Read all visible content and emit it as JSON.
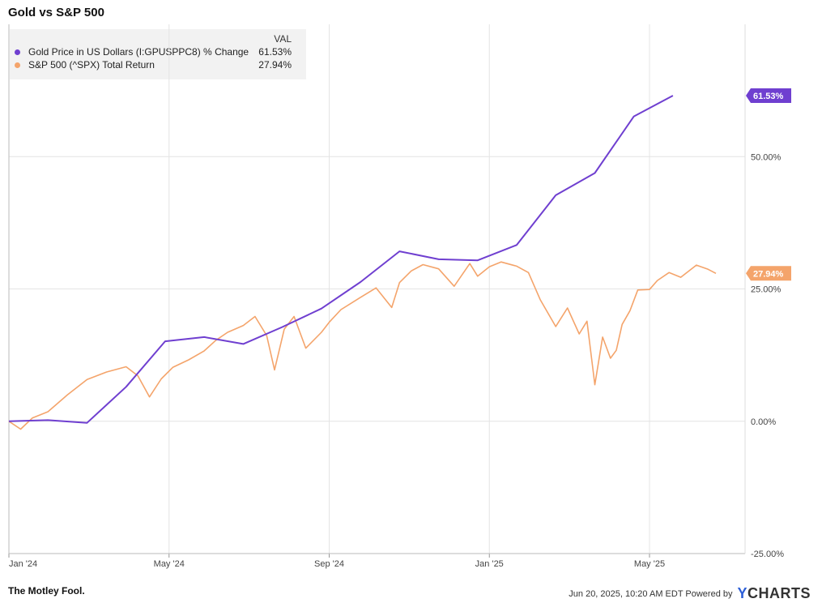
{
  "chart_data": {
    "type": "line",
    "title": "Gold vs S&P 500",
    "legend_header": "VAL",
    "x_ticks": [
      "Jan '24",
      "May '24",
      "Sep '24",
      "Jan '25",
      "May '25"
    ],
    "y_ticks": [
      "50.00%",
      "25.00%",
      "0.00%",
      "-25.00%"
    ],
    "ylim": [
      -25,
      75
    ],
    "series": [
      {
        "name": "Gold Price in US Dollars (I:GPUSPPC8) % Change",
        "color": "#6f3fd0",
        "last_label": "61.53%",
        "x": [
          0,
          1,
          2,
          3,
          4,
          5,
          6,
          7,
          8,
          9,
          10,
          11,
          12,
          13,
          14,
          15,
          16,
          17
        ],
        "values": [
          0,
          0.2,
          -0.3,
          6.5,
          15.1,
          15.9,
          14.6,
          17.8,
          21.3,
          26.3,
          32.1,
          30.6,
          30.4,
          33.3,
          42.7,
          46.9,
          57.6,
          61.53
        ]
      },
      {
        "name": "S&P 500 (^SPX) Total Return",
        "color": "#f4a46b",
        "last_label": "27.94%",
        "x": [
          0,
          0.3,
          0.6,
          1,
          1.5,
          2,
          2.5,
          3,
          3.3,
          3.6,
          3.9,
          4.2,
          4.6,
          5,
          5.3,
          5.6,
          6,
          6.3,
          6.6,
          6.8,
          7.05,
          7.3,
          7.6,
          8,
          8.2,
          8.5,
          9,
          9.4,
          9.8,
          10,
          10.3,
          10.6,
          11,
          11.4,
          11.8,
          12,
          12.3,
          12.6,
          13,
          13.3,
          13.6,
          14,
          14.3,
          14.6,
          14.8,
          15,
          15.2,
          15.4,
          15.55,
          15.7,
          15.9,
          16.1,
          16.4,
          16.6,
          16.9,
          17.2,
          17.6,
          17.9,
          18.1
        ],
        "values": [
          0,
          -1.5,
          0.6,
          1.8,
          5,
          7.9,
          9.3,
          10.3,
          8.6,
          4.6,
          8,
          10.2,
          11.6,
          13.3,
          15.3,
          16.8,
          18.1,
          19.8,
          16.2,
          9.7,
          17.4,
          19.8,
          13.8,
          16.8,
          18.7,
          21.1,
          23.4,
          25.2,
          21.5,
          26.2,
          28.4,
          29.6,
          28.8,
          25.5,
          29.8,
          27.4,
          29.2,
          30.1,
          29.3,
          28.1,
          23,
          17.9,
          21.4,
          16.5,
          18.9,
          6.9,
          15.9,
          11.9,
          13.4,
          18.3,
          20.9,
          24.8,
          24.9,
          26.6,
          28.1,
          27.2,
          29.5,
          28.7,
          27.94
        ]
      }
    ]
  },
  "footer": {
    "brand": "The Motley Fool.",
    "timestamp": "Jun 20, 2025, 10:20 AM EDT Powered by",
    "ycharts_y": "Y",
    "ycharts_rest": "CHARTS"
  }
}
